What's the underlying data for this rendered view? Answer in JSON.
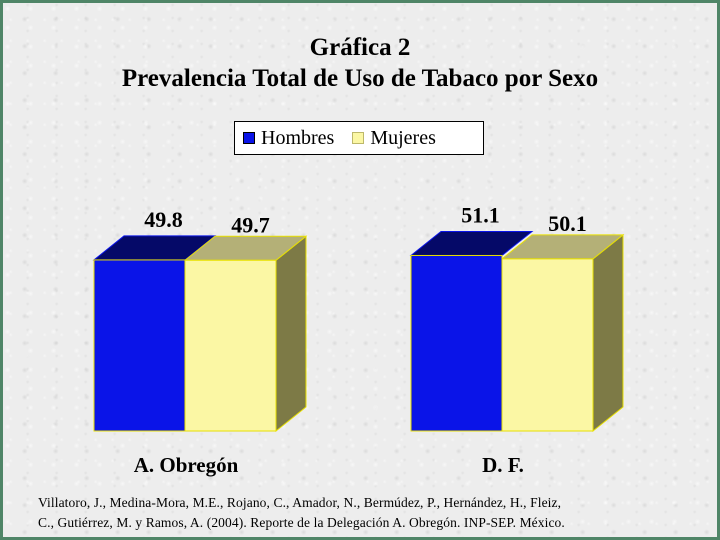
{
  "chart_data": {
    "type": "bar",
    "title": "Gráfica 2",
    "subtitle": "Prevalencia Total de Uso de Tabaco por Sexo",
    "categories": [
      "A. Obregón",
      "D. F."
    ],
    "series": [
      {
        "name": "Hombres",
        "values": [
          49.8,
          51.1
        ],
        "labels": [
          "49.8",
          "51.1"
        ]
      },
      {
        "name": "Mujeres",
        "values": [
          49.7,
          50.1
        ],
        "labels": [
          "49.7",
          "50.1"
        ]
      }
    ],
    "legend": "top-center",
    "grid": false,
    "style": "3d-column"
  },
  "colors": {
    "hombres": "#0a14e8",
    "mujeres": "#fbf7a4",
    "edge": "#e8e000",
    "frame": "#4f8567"
  },
  "citation": {
    "line1": "Villatoro, J., Medina-Mora, M.E., Rojano, C., Amador, N., Bermúdez, P., Hernández, H., Fleiz,",
    "line2": "C., Gutiérrez, M. y Ramos, A. (2004). Reporte de la Delegación A. Obregón. INP-SEP. México."
  }
}
